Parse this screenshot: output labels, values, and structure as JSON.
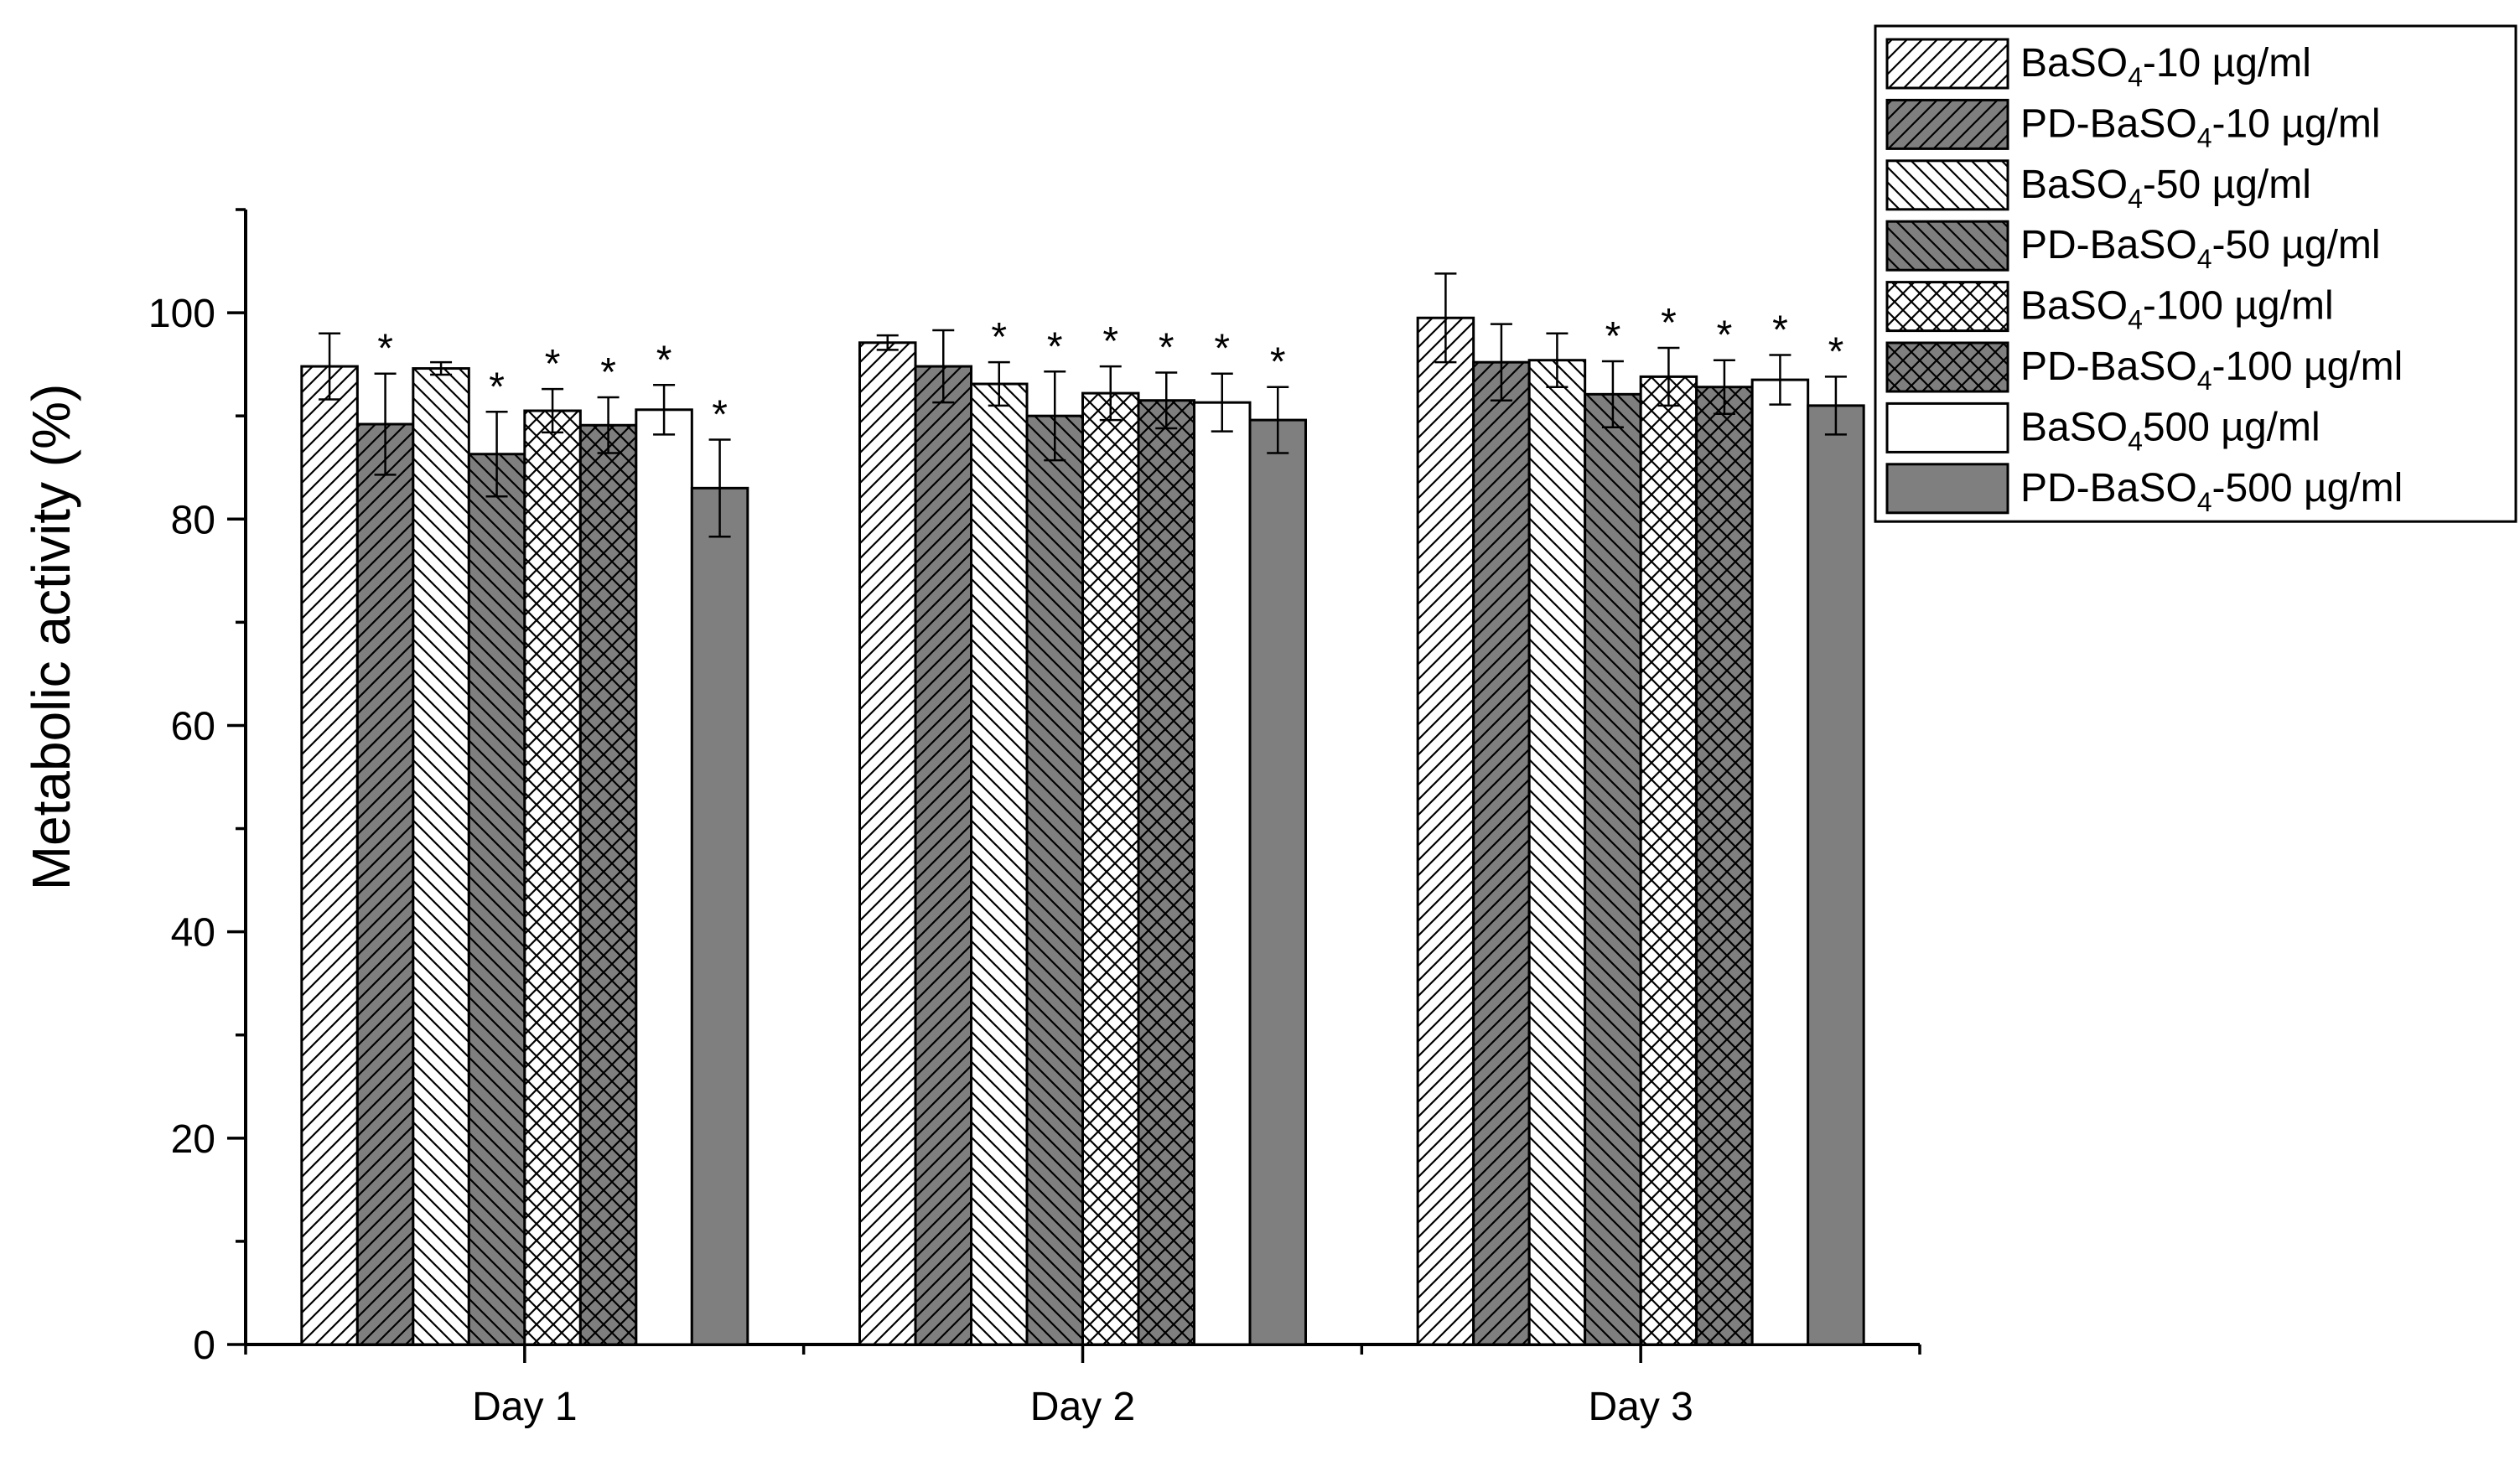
{
  "chart_data": {
    "type": "bar",
    "title": "",
    "xlabel": "",
    "ylabel": "Metabolic activity (%)",
    "ylim": [
      0,
      110
    ],
    "yticks": [
      0,
      20,
      40,
      60,
      80,
      100
    ],
    "categories": [
      "Day 1",
      "Day 2",
      "Day 3"
    ],
    "grid": false,
    "legend_position": "top-right, outside plot",
    "significance_marker": "*",
    "series": [
      {
        "name": "BaSO4-10 µg/ml",
        "pattern": "diag-fwd-light",
        "values": [
          94.8,
          97.1,
          99.5
        ],
        "errors": [
          3.2,
          0.7,
          4.3
        ],
        "significant": [
          false,
          false,
          false
        ]
      },
      {
        "name": "PD-BaSO4-10 µg/ml",
        "pattern": "diag-fwd-dark",
        "values": [
          89.2,
          94.8,
          95.2
        ],
        "errors": [
          4.9,
          3.5,
          3.7
        ],
        "significant": [
          true,
          false,
          false
        ]
      },
      {
        "name": "BaSO4-50 µg/ml",
        "pattern": "diag-back-light",
        "values": [
          94.6,
          93.1,
          95.4
        ],
        "errors": [
          0.6,
          2.1,
          2.6
        ],
        "significant": [
          false,
          true,
          false
        ]
      },
      {
        "name": "PD-BaSO4-50 µg/ml",
        "pattern": "diag-back-dark",
        "values": [
          86.3,
          90.0,
          92.1
        ],
        "errors": [
          4.1,
          4.3,
          3.2
        ],
        "significant": [
          true,
          true,
          true
        ]
      },
      {
        "name": "BaSO4-100 µg/ml",
        "pattern": "cross-light",
        "values": [
          90.5,
          92.2,
          93.8
        ],
        "errors": [
          2.1,
          2.6,
          2.8
        ],
        "significant": [
          true,
          true,
          true
        ]
      },
      {
        "name": "PD-BaSO4-100 µg/ml",
        "pattern": "cross-dark",
        "values": [
          89.1,
          91.5,
          92.8
        ],
        "errors": [
          2.7,
          2.7,
          2.6
        ],
        "significant": [
          true,
          true,
          true
        ]
      },
      {
        "name": "BaSO4500 µg/ml",
        "pattern": "solid-white",
        "values": [
          90.6,
          91.3,
          93.5
        ],
        "errors": [
          2.4,
          2.8,
          2.4
        ],
        "significant": [
          true,
          true,
          true
        ]
      },
      {
        "name": "PD-BaSO4-500 µg/ml",
        "pattern": "solid-gray",
        "values": [
          83.0,
          89.6,
          91.0
        ],
        "errors": [
          4.7,
          3.2,
          2.8
        ],
        "significant": [
          true,
          true,
          true
        ]
      }
    ],
    "legend": [
      {
        "parts": [
          {
            "t": "BaSO"
          },
          {
            "t": "4",
            "sub": true
          },
          {
            "t": "-10 µg/ml"
          }
        ]
      },
      {
        "parts": [
          {
            "t": "PD-BaSO"
          },
          {
            "t": "4",
            "sub": true
          },
          {
            "t": "-10 µg/ml"
          }
        ]
      },
      {
        "parts": [
          {
            "t": "BaSO"
          },
          {
            "t": "4",
            "sub": true
          },
          {
            "t": "-50 µg/ml"
          }
        ]
      },
      {
        "parts": [
          {
            "t": "PD-BaSO"
          },
          {
            "t": "4",
            "sub": true
          },
          {
            "t": "-50 µg/ml"
          }
        ]
      },
      {
        "parts": [
          {
            "t": "BaSO"
          },
          {
            "t": "4",
            "sub": true
          },
          {
            "t": "-100 µg/ml"
          }
        ]
      },
      {
        "parts": [
          {
            "t": "PD-BaSO"
          },
          {
            "t": "4",
            "sub": true
          },
          {
            "t": "-100 µg/ml"
          }
        ]
      },
      {
        "parts": [
          {
            "t": "BaSO"
          },
          {
            "t": "4",
            "sub": true
          },
          {
            "t": "500 µg/ml"
          }
        ]
      },
      {
        "parts": [
          {
            "t": "PD-BaSO"
          },
          {
            "t": "4",
            "sub": true
          },
          {
            "t": "-500 µg/ml"
          }
        ]
      }
    ],
    "colors": {
      "dark_fill": "#7f7f7f",
      "light_fill": "#ffffff",
      "stroke": "#000000"
    }
  }
}
